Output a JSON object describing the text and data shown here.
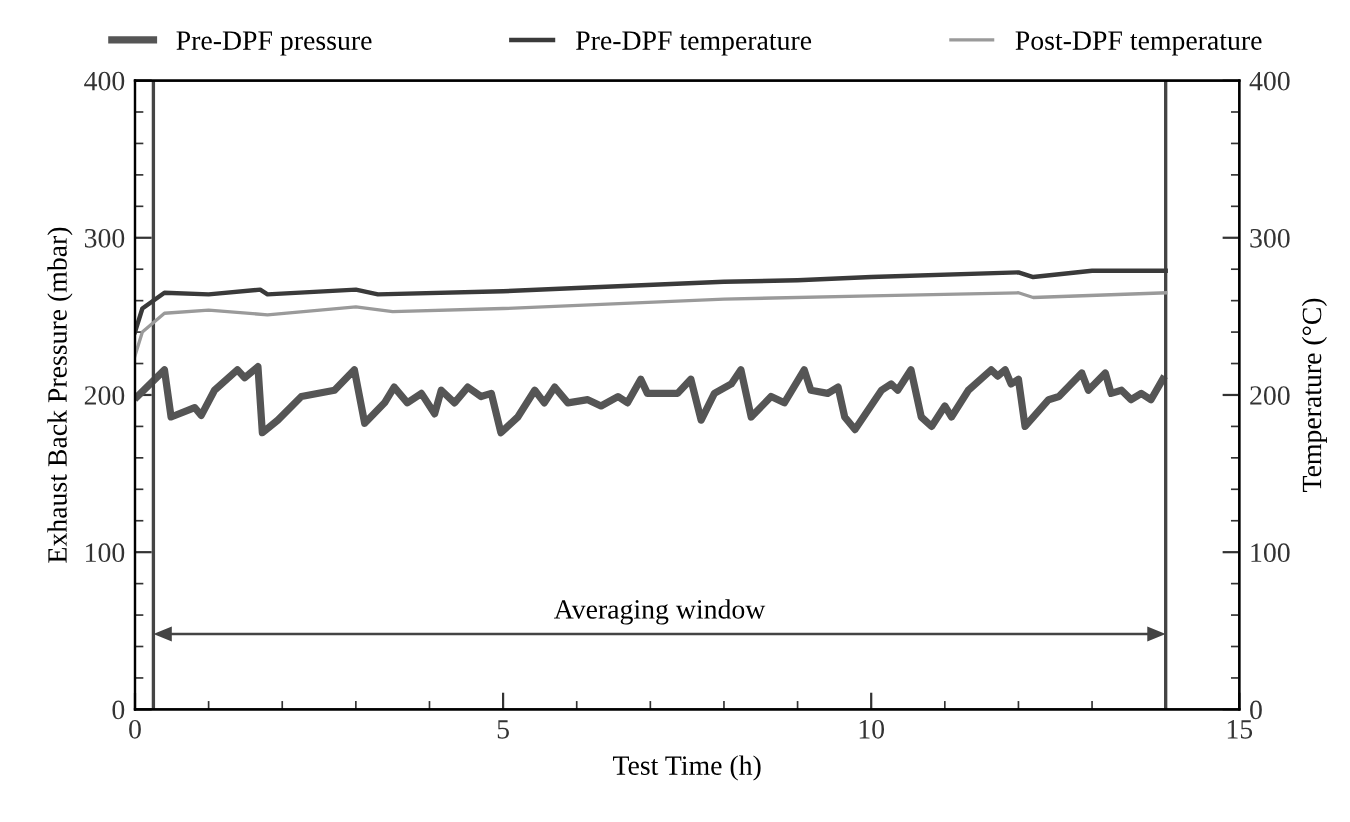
{
  "chart_data": {
    "type": "line",
    "xlabel": "Test Time (h)",
    "ylabel": "Exhaust Back Pressure (mbar)",
    "y2label": "Temperature (°C)",
    "xlim": [
      0,
      15
    ],
    "xticks": [
      0,
      5,
      10,
      15
    ],
    "ylim": [
      0,
      400
    ],
    "yticks": [
      0,
      100,
      200,
      300,
      400
    ],
    "y2lim": [
      0,
      400
    ],
    "y2ticks": [
      0,
      100,
      200,
      300,
      400
    ],
    "grid": false,
    "legend": "top",
    "marker": "none",
    "line_style": "solid",
    "series": [
      {
        "name": "Pre-DPF pressure",
        "color": "#555555",
        "x": [
          0.03,
          0.4,
          0.49,
          0.81,
          0.9,
          1.08,
          1.39,
          1.49,
          1.67,
          1.73,
          1.94,
          2.26,
          2.71,
          2.98,
          3.12,
          3.39,
          3.52,
          3.7,
          3.89,
          4.07,
          4.16,
          4.34,
          4.52,
          4.7,
          4.84,
          4.97,
          5.2,
          5.43,
          5.56,
          5.7,
          5.88,
          6.15,
          6.33,
          6.56,
          6.69,
          6.87,
          6.96,
          7.15,
          7.37,
          7.55,
          7.69,
          7.87,
          8.1,
          8.23,
          8.37,
          8.64,
          8.82,
          9.09,
          9.18,
          9.41,
          9.55,
          9.64,
          9.78,
          10.14,
          10.27,
          10.36,
          10.54,
          10.68,
          10.82,
          11.0,
          11.09,
          11.32,
          11.63,
          11.72,
          11.82,
          11.9,
          12.0,
          12.09,
          12.41,
          12.55,
          12.86,
          12.95,
          13.18,
          13.26,
          13.4,
          13.53,
          13.67,
          13.8,
          13.96
        ],
        "values": [
          199,
          216,
          186,
          192,
          187,
          203,
          216,
          211,
          218,
          176,
          184,
          199,
          203,
          216,
          182,
          195,
          205,
          195,
          201,
          188,
          203,
          195,
          205,
          199,
          201,
          176,
          186,
          203,
          195,
          205,
          195,
          197,
          193,
          199,
          195,
          210,
          201,
          201,
          201,
          210,
          184,
          201,
          207,
          216,
          186,
          199,
          195,
          216,
          203,
          201,
          205,
          186,
          178,
          203,
          207,
          203,
          216,
          186,
          180,
          193,
          186,
          203,
          216,
          212,
          216,
          207,
          210,
          180,
          197,
          199,
          214,
          203,
          214,
          201,
          203,
          197,
          201,
          197,
          210
        ]
      },
      {
        "name": "Pre-DPF temperature",
        "color": "#3a3a3a",
        "axis": "y2",
        "x": [
          0,
          0.1,
          0.4,
          1,
          1.7,
          1.8,
          3,
          3.3,
          5,
          6,
          8,
          9,
          10,
          12,
          12.2,
          13,
          14
        ],
        "values": [
          240,
          255,
          265,
          264,
          267,
          264,
          267,
          264,
          266,
          268,
          272,
          273,
          275,
          278,
          275,
          279,
          279
        ]
      },
      {
        "name": "Post-DPF temperature",
        "color": "#9a9a9a",
        "axis": "y2",
        "x": [
          0,
          0.1,
          0.4,
          1,
          1.8,
          3,
          3.5,
          5,
          8,
          10,
          12,
          12.2,
          14
        ],
        "values": [
          225,
          240,
          252,
          254,
          251,
          256,
          253,
          255,
          261,
          263,
          265,
          262,
          265
        ]
      }
    ],
    "ref_lines": [
      {
        "axis": "x",
        "value": 0.25,
        "color": "#444444"
      },
      {
        "axis": "x",
        "value": 14,
        "color": "#444444"
      }
    ],
    "annotations": [
      "Averaging window"
    ]
  }
}
